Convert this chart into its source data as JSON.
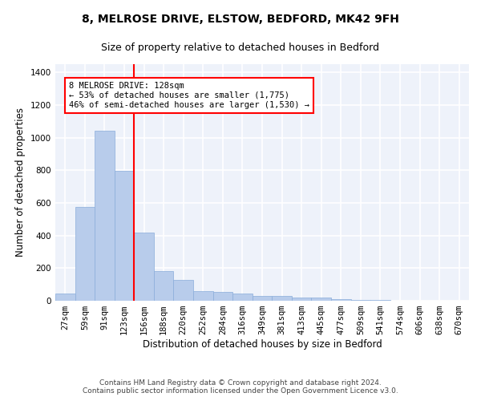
{
  "title1": "8, MELROSE DRIVE, ELSTOW, BEDFORD, MK42 9FH",
  "title2": "Size of property relative to detached houses in Bedford",
  "xlabel": "Distribution of detached houses by size in Bedford",
  "ylabel": "Number of detached properties",
  "categories": [
    "27sqm",
    "59sqm",
    "91sqm",
    "123sqm",
    "156sqm",
    "188sqm",
    "220sqm",
    "252sqm",
    "284sqm",
    "316sqm",
    "349sqm",
    "381sqm",
    "413sqm",
    "445sqm",
    "477sqm",
    "509sqm",
    "541sqm",
    "574sqm",
    "606sqm",
    "638sqm",
    "670sqm"
  ],
  "values": [
    45,
    575,
    1040,
    795,
    420,
    180,
    130,
    60,
    55,
    45,
    30,
    28,
    20,
    18,
    12,
    5,
    3,
    2,
    1,
    1,
    0
  ],
  "bar_color": "#b8cceb",
  "bar_edge_color": "#8aadda",
  "vline_color": "red",
  "annotation_text": "8 MELROSE DRIVE: 128sqm\n← 53% of detached houses are smaller (1,775)\n46% of semi-detached houses are larger (1,530) →",
  "annotation_box_color": "white",
  "annotation_box_edge_color": "red",
  "ylim": [
    0,
    1450
  ],
  "yticks": [
    0,
    200,
    400,
    600,
    800,
    1000,
    1200,
    1400
  ],
  "background_color": "#eef2fa",
  "grid_color": "white",
  "footer": "Contains HM Land Registry data © Crown copyright and database right 2024.\nContains public sector information licensed under the Open Government Licence v3.0.",
  "title1_fontsize": 10,
  "title2_fontsize": 9,
  "xlabel_fontsize": 8.5,
  "ylabel_fontsize": 8.5,
  "footer_fontsize": 6.5,
  "tick_fontsize": 7.5,
  "annot_fontsize": 7.5
}
